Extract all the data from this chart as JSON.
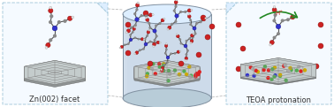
{
  "fig_width": 3.78,
  "fig_height": 1.21,
  "dpi": 100,
  "bg_color": "#ffffff",
  "left_panel": {
    "bg": "#f0f6fc",
    "border_color": "#aaccdd",
    "label": "Zn(002) facet",
    "label_fontsize": 6.0,
    "label_color": "#333333"
  },
  "right_panel": {
    "bg": "#f0f6fc",
    "border_color": "#aaccdd",
    "label": "TEOA protonation",
    "label_fontsize": 6.0,
    "label_color": "#333333"
  },
  "panel_bg_white": "#ffffff",
  "atom_C": "#888888",
  "atom_N": "#3333cc",
  "atom_O": "#cc2222",
  "atom_H": "#dddddd",
  "atom_Zn_green": "#55aa55",
  "atom_S_yellow": "#ccaa00",
  "atom_red": "#dd2222",
  "bond_color": "#555555",
  "cylinder_body": "#c8d8e8",
  "cylinder_top": "#ddeeff",
  "cylinder_edge": "#8899aa",
  "plate_top": "#c0c8c8",
  "plate_side": "#909898",
  "plate_edge": "#707878",
  "hex_color": "#707878"
}
